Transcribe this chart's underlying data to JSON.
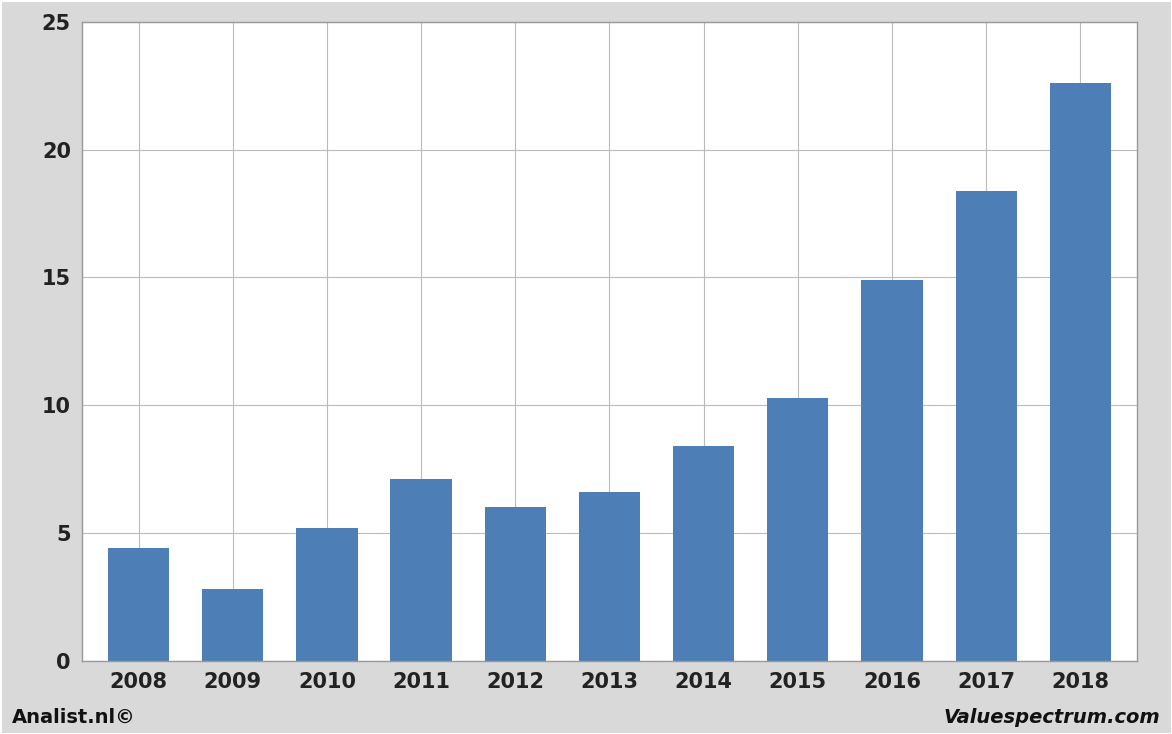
{
  "categories": [
    "2008",
    "2009",
    "2010",
    "2011",
    "2012",
    "2013",
    "2014",
    "2015",
    "2016",
    "2017",
    "2018"
  ],
  "values": [
    4.4,
    2.8,
    5.2,
    7.1,
    6.0,
    6.6,
    8.4,
    10.3,
    14.9,
    18.4,
    22.6
  ],
  "bar_color": "#4d7eb5",
  "ylim": [
    0,
    25
  ],
  "yticks": [
    0,
    5,
    10,
    15,
    20,
    25
  ],
  "figure_bg_color": "#d9d9d9",
  "plot_bg_color": "#ffffff",
  "grid_color": "#bbbbbb",
  "footer_left": "Analist.nl©",
  "footer_right": "Valuespectrum.com",
  "border_color": "#999999",
  "tick_fontsize": 15,
  "footer_fontsize": 14
}
